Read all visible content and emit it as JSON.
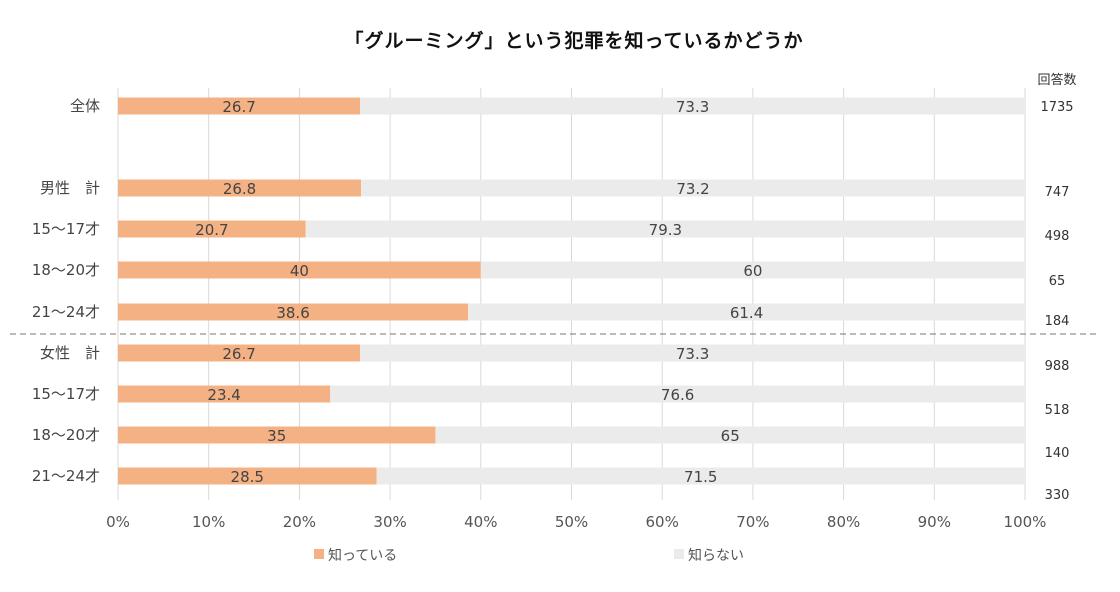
{
  "chart_data": {
    "type": "bar",
    "orientation": "horizontal",
    "stacked": "percent",
    "title": "「グルーミング」という犯罪を知っているかどうか",
    "categories": [
      "全体",
      "男性　計",
      "15〜17才",
      "18〜20才",
      "21〜24才",
      "女性　計",
      "15〜17才",
      "18〜20才",
      "21〜24才"
    ],
    "series": [
      {
        "name": "知っている",
        "color": "#F4B183",
        "values": [
          26.7,
          26.8,
          20.7,
          40,
          38.6,
          26.7,
          23.4,
          35,
          28.5
        ]
      },
      {
        "name": "知らない",
        "color": "#EBEBEB",
        "values": [
          73.3,
          73.2,
          79.3,
          60,
          61.4,
          73.3,
          76.6,
          65,
          71.5
        ]
      }
    ],
    "counts_header": "回答数",
    "counts": [
      "1735",
      "747",
      "498",
      "65",
      "184",
      "988",
      "518",
      "140",
      "330"
    ],
    "x_ticks": [
      "0%",
      "10%",
      "20%",
      "30%",
      "40%",
      "50%",
      "60%",
      "70%",
      "80%",
      "90%",
      "100%"
    ],
    "xlim": [
      0,
      100
    ],
    "grid": true,
    "legend_position": "bottom"
  }
}
